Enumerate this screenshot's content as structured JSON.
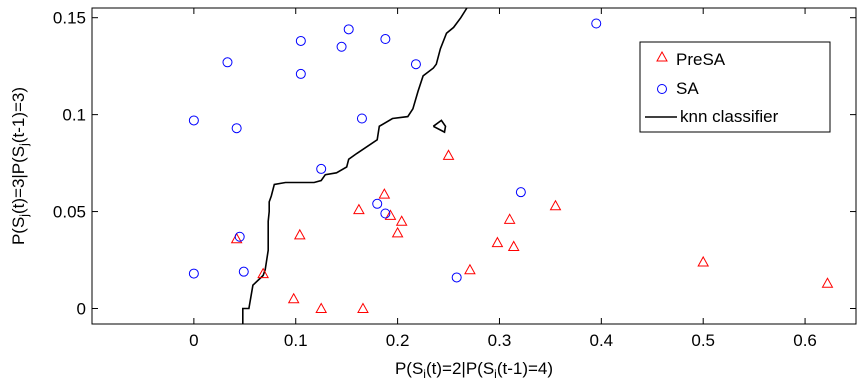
{
  "chart_data": {
    "type": "scatter",
    "title": "",
    "xlabel": {
      "pre": "P(S",
      "sub1": "i",
      "mid": "(t)=2|P(S",
      "sub2": "i",
      "post": "(t-1)=4)"
    },
    "ylabel": {
      "pre": "P(S",
      "sub1": "j",
      "mid": "(t)=3|P(S",
      "sub2": "j",
      "post": "(t-1)=3)"
    },
    "xlim": [
      -0.1,
      0.65
    ],
    "ylim": [
      -0.008,
      0.155
    ],
    "xticks": [
      0,
      0.1,
      0.2,
      0.3,
      0.4,
      0.5,
      0.6
    ],
    "xtick_labels": [
      "0",
      "0.1",
      "0.2",
      "0.3",
      "0.4",
      "0.5",
      "0.6"
    ],
    "yticks": [
      0,
      0.05,
      0.1,
      0.15
    ],
    "ytick_labels": [
      "0",
      "0.05",
      "0.1",
      "0.15"
    ],
    "grid": false,
    "legend_position": "top-right",
    "colors": {
      "presa": "#ff0000",
      "sa": "#0000ff",
      "knn": "#000000"
    },
    "series": [
      {
        "name": "PreSA",
        "marker": "triangle",
        "points": [
          [
            0.042,
            0.036
          ],
          [
            0.068,
            0.018
          ],
          [
            0.098,
            0.005
          ],
          [
            0.104,
            0.038
          ],
          [
            0.125,
            0.0
          ],
          [
            0.162,
            0.051
          ],
          [
            0.166,
            0.0
          ],
          [
            0.187,
            0.059
          ],
          [
            0.193,
            0.048
          ],
          [
            0.2,
            0.039
          ],
          [
            0.204,
            0.045
          ],
          [
            0.25,
            0.079
          ],
          [
            0.271,
            0.02
          ],
          [
            0.298,
            0.034
          ],
          [
            0.31,
            0.046
          ],
          [
            0.314,
            0.032
          ],
          [
            0.355,
            0.053
          ],
          [
            0.5,
            0.024
          ],
          [
            0.622,
            0.013
          ]
        ]
      },
      {
        "name": "SA",
        "marker": "circle",
        "points": [
          [
            0.0,
            0.097
          ],
          [
            0.0,
            0.018
          ],
          [
            0.033,
            0.127
          ],
          [
            0.042,
            0.093
          ],
          [
            0.045,
            0.037
          ],
          [
            0.049,
            0.019
          ],
          [
            0.105,
            0.138
          ],
          [
            0.105,
            0.121
          ],
          [
            0.125,
            0.072
          ],
          [
            0.145,
            0.135
          ],
          [
            0.152,
            0.144
          ],
          [
            0.165,
            0.098
          ],
          [
            0.18,
            0.054
          ],
          [
            0.188,
            0.139
          ],
          [
            0.188,
            0.049
          ],
          [
            0.218,
            0.126
          ],
          [
            0.258,
            0.016
          ],
          [
            0.321,
            0.06
          ],
          [
            0.395,
            0.147
          ]
        ]
      },
      {
        "name": "knn classifier",
        "marker": "line",
        "points": [
          [
            0.048,
            -0.008
          ],
          [
            0.048,
            0.0
          ],
          [
            0.054,
            0.0
          ],
          [
            0.058,
            0.012
          ],
          [
            0.068,
            0.017
          ],
          [
            0.07,
            0.02
          ],
          [
            0.073,
            0.03
          ],
          [
            0.073,
            0.045
          ],
          [
            0.074,
            0.05
          ],
          [
            0.074,
            0.055
          ],
          [
            0.076,
            0.058
          ],
          [
            0.079,
            0.064
          ],
          [
            0.09,
            0.065
          ],
          [
            0.105,
            0.065
          ],
          [
            0.118,
            0.065
          ],
          [
            0.125,
            0.066
          ],
          [
            0.129,
            0.069
          ],
          [
            0.14,
            0.07
          ],
          [
            0.15,
            0.073
          ],
          [
            0.152,
            0.077
          ],
          [
            0.16,
            0.08
          ],
          [
            0.18,
            0.087
          ],
          [
            0.182,
            0.094
          ],
          [
            0.195,
            0.098
          ],
          [
            0.21,
            0.099
          ],
          [
            0.215,
            0.103
          ],
          [
            0.22,
            0.112
          ],
          [
            0.225,
            0.12
          ],
          [
            0.235,
            0.124
          ],
          [
            0.238,
            0.126
          ],
          [
            0.242,
            0.134
          ],
          [
            0.248,
            0.142
          ],
          [
            0.255,
            0.145
          ],
          [
            0.262,
            0.15
          ],
          [
            0.268,
            0.155
          ]
        ],
        "loop": [
          [
            0.235,
            0.094
          ],
          [
            0.243,
            0.097
          ],
          [
            0.247,
            0.094
          ],
          [
            0.246,
            0.091
          ],
          [
            0.235,
            0.094
          ]
        ]
      }
    ]
  }
}
